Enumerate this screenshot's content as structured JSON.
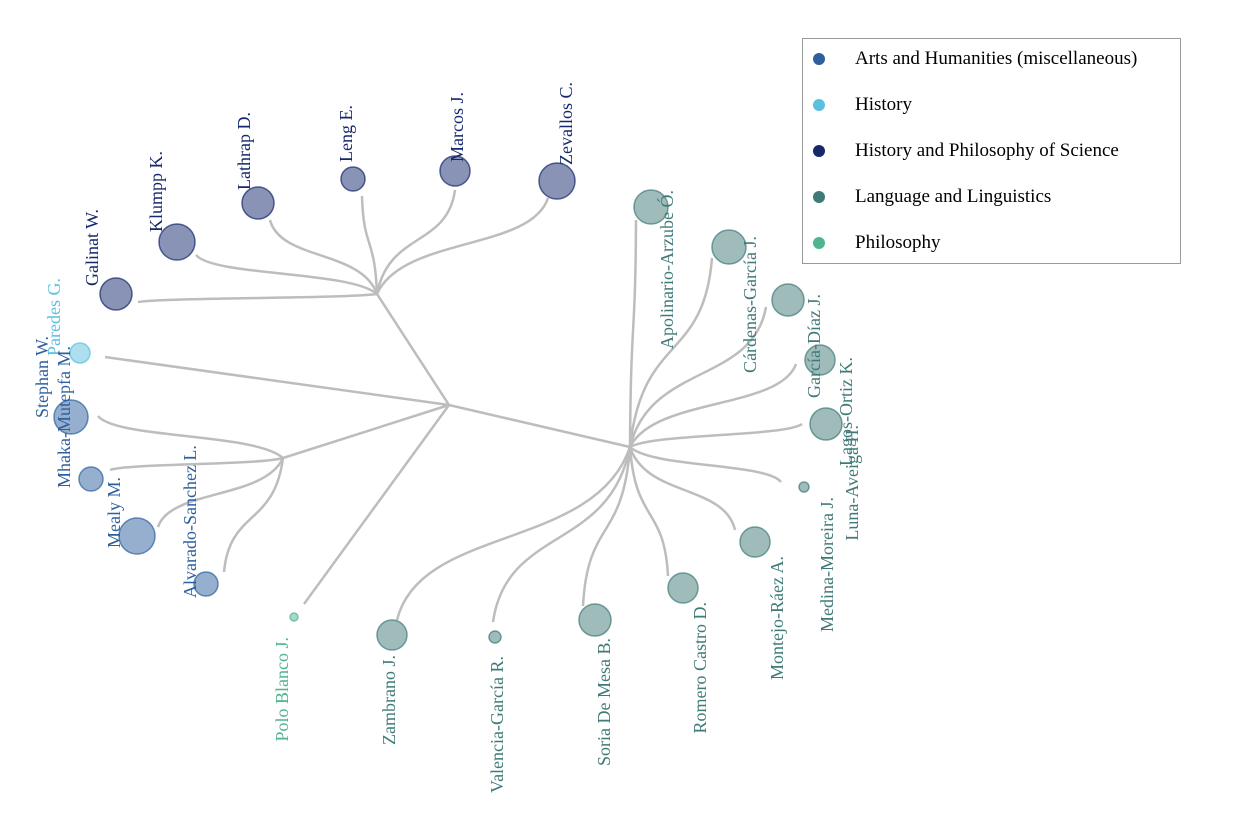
{
  "legend": {
    "items": [
      {
        "label": "Arts and Humanities (miscellaneous)",
        "color": "#2e5f9e"
      },
      {
        "label": "History",
        "color": "#5bc0de"
      },
      {
        "label": "History and Philosophy of Science",
        "color": "#14286b"
      },
      {
        "label": "Language and Linguistics",
        "color": "#3f7a78"
      },
      {
        "label": "Philosophy",
        "color": "#4fb58e"
      }
    ]
  },
  "tree": {
    "edge_color": "#bdbdbd",
    "leaves": [
      {
        "name": "Galinat W.",
        "category": "History and Philosophy of Science",
        "size": 16
      },
      {
        "name": "Klumpp K.",
        "category": "History and Philosophy of Science",
        "size": 18
      },
      {
        "name": "Lathrap D.",
        "category": "History and Philosophy of Science",
        "size": 16
      },
      {
        "name": "Leng E.",
        "category": "History and Philosophy of Science",
        "size": 12
      },
      {
        "name": "Marcos J.",
        "category": "History and Philosophy of Science",
        "size": 15
      },
      {
        "name": "Zevallos C.",
        "category": "History and Philosophy of Science",
        "size": 18
      },
      {
        "name": "Paredes G.",
        "category": "History",
        "size": 10
      },
      {
        "name": "Stephan W.",
        "category": "Arts and Humanities (miscellaneous)",
        "size": 17
      },
      {
        "name": "Mhaka-Mutepfa M.",
        "category": "Arts and Humanities (miscellaneous)",
        "size": 12
      },
      {
        "name": "Mealy M.",
        "category": "Arts and Humanities (miscellaneous)",
        "size": 18
      },
      {
        "name": "Alvarado-Sanchez L.",
        "category": "Arts and Humanities (miscellaneous)",
        "size": 12
      },
      {
        "name": "Polo Blanco J.",
        "category": "Philosophy",
        "size": 4
      },
      {
        "name": "Zambrano J.",
        "category": "Language and Linguistics",
        "size": 15
      },
      {
        "name": "Valencia-García R.",
        "category": "Language and Linguistics",
        "size": 6
      },
      {
        "name": "Soria De Mesa B.",
        "category": "Language and Linguistics",
        "size": 16
      },
      {
        "name": "Romero Castro D.",
        "category": "Language and Linguistics",
        "size": 15
      },
      {
        "name": "Montejo-Ráez A.",
        "category": "Language and Linguistics",
        "size": 15
      },
      {
        "name": "Medina-Moreira J.",
        "category": "Language and Linguistics",
        "size": 5
      },
      {
        "name": "Lagos-Ortiz K.",
        "category": "Language and Linguistics",
        "size": 16
      },
      {
        "name": "Luna-Aveiga H.",
        "category": "Language and Linguistics",
        "size": 15
      },
      {
        "name": "García-Díaz J.",
        "category": "Language and Linguistics",
        "size": 16
      },
      {
        "name": "Cárdenas-García J.",
        "category": "Language and Linguistics",
        "size": 17
      },
      {
        "name": "Apolinario-Arzube Ó.",
        "category": "Language and Linguistics",
        "size": 17
      }
    ]
  }
}
